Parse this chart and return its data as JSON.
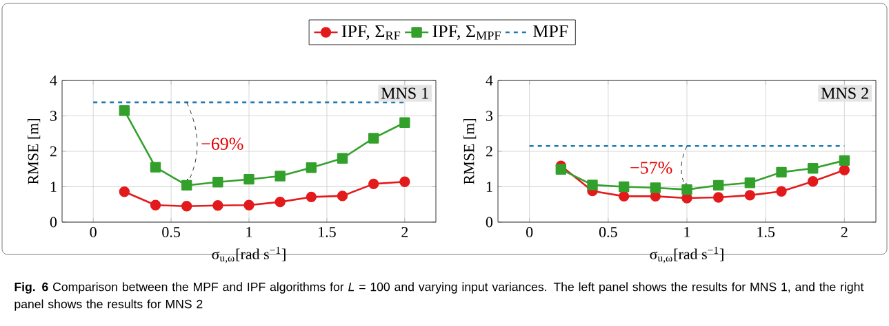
{
  "chart_data": [
    {
      "type": "line",
      "xlabel": "σ$_{u,ω}$[rad s$^{−1}$]",
      "ylabel": "RMSE [m]",
      "xlim": [
        -0.2,
        2.2
      ],
      "ylim": [
        0,
        4
      ],
      "xticks": [
        0,
        0.5,
        1,
        1.5,
        2
      ],
      "yticks": [
        0,
        1,
        2,
        3,
        4
      ],
      "grid": true,
      "legend": "top",
      "annotations": [
        "MNS 1",
        {
          "text": "−69%",
          "x": 0.6,
          "y": 1.04
        },
        "**Fig. 6** Comparison between the MPF and IPF algorithms for *L* = 100 and varying input variances. The left panel shows the results for MNS 1, and the right panel shows the results for MNS 2"
      ],
      "series": [
        {
          "name": "IPF, Σ$_{RF}$",
          "color": "#e31a1c",
          "marker": "circle",
          "x": [
            0.2,
            0.4,
            0.6,
            0.8,
            1.0,
            1.2,
            1.4,
            1.6,
            1.8,
            2.0
          ],
          "values": [
            0.86,
            0.48,
            0.45,
            0.47,
            0.48,
            0.57,
            0.71,
            0.74,
            1.08,
            1.14
          ]
        },
        {
          "name": "IPF, Σ$_{MPF}$",
          "color": "#33a02c",
          "marker": "square",
          "x": [
            0.2,
            0.4,
            0.6,
            0.8,
            1.0,
            1.2,
            1.4,
            1.6,
            1.8,
            2.0
          ],
          "values": [
            3.15,
            1.55,
            1.04,
            1.13,
            1.21,
            1.3,
            1.54,
            1.8,
            2.37,
            2.81
          ]
        },
        {
          "name": "MPF",
          "color": "#1f78b4",
          "marker": "none",
          "line_style": "dashed",
          "x": [
            0,
            2
          ],
          "values": [
            3.38,
            3.38
          ]
        }
      ]
    },
    {
      "type": "line",
      "xlabel": "σ$_{u,ω}$[rad s$^{−1}$]",
      "ylabel": "RMSE [m]",
      "xlim": [
        -0.2,
        2.2
      ],
      "ylim": [
        0,
        4
      ],
      "xticks": [
        0,
        0.5,
        1,
        1.5,
        2
      ],
      "yticks": [
        0,
        1,
        2,
        3,
        4
      ],
      "grid": true,
      "annotations": [
        "MNS 2",
        {
          "text": "−57%",
          "x": 1.0,
          "y": 0.92
        }
      ],
      "series": [
        {
          "color": "#e31a1c",
          "marker": "circle",
          "x": [
            0.2,
            0.4,
            0.6,
            0.8,
            1.0,
            1.2,
            1.4,
            1.6,
            1.8,
            2.0
          ],
          "values": [
            1.59,
            0.88,
            0.73,
            0.73,
            0.68,
            0.7,
            0.76,
            0.87,
            1.15,
            1.47
          ]
        },
        {
          "color": "#33a02c",
          "marker": "square",
          "x": [
            0.2,
            0.4,
            0.6,
            0.8,
            1.0,
            1.2,
            1.4,
            1.6,
            1.8,
            2.0
          ],
          "values": [
            1.49,
            1.05,
            1.0,
            0.97,
            0.92,
            1.04,
            1.11,
            1.41,
            1.52,
            1.74
          ]
        },
        {
          "color": "#1f78b4",
          "marker": "none",
          "line_style": "dashed",
          "x": [
            0,
            2
          ],
          "values": [
            2.15,
            2.15
          ]
        }
      ]
    }
  ]
}
